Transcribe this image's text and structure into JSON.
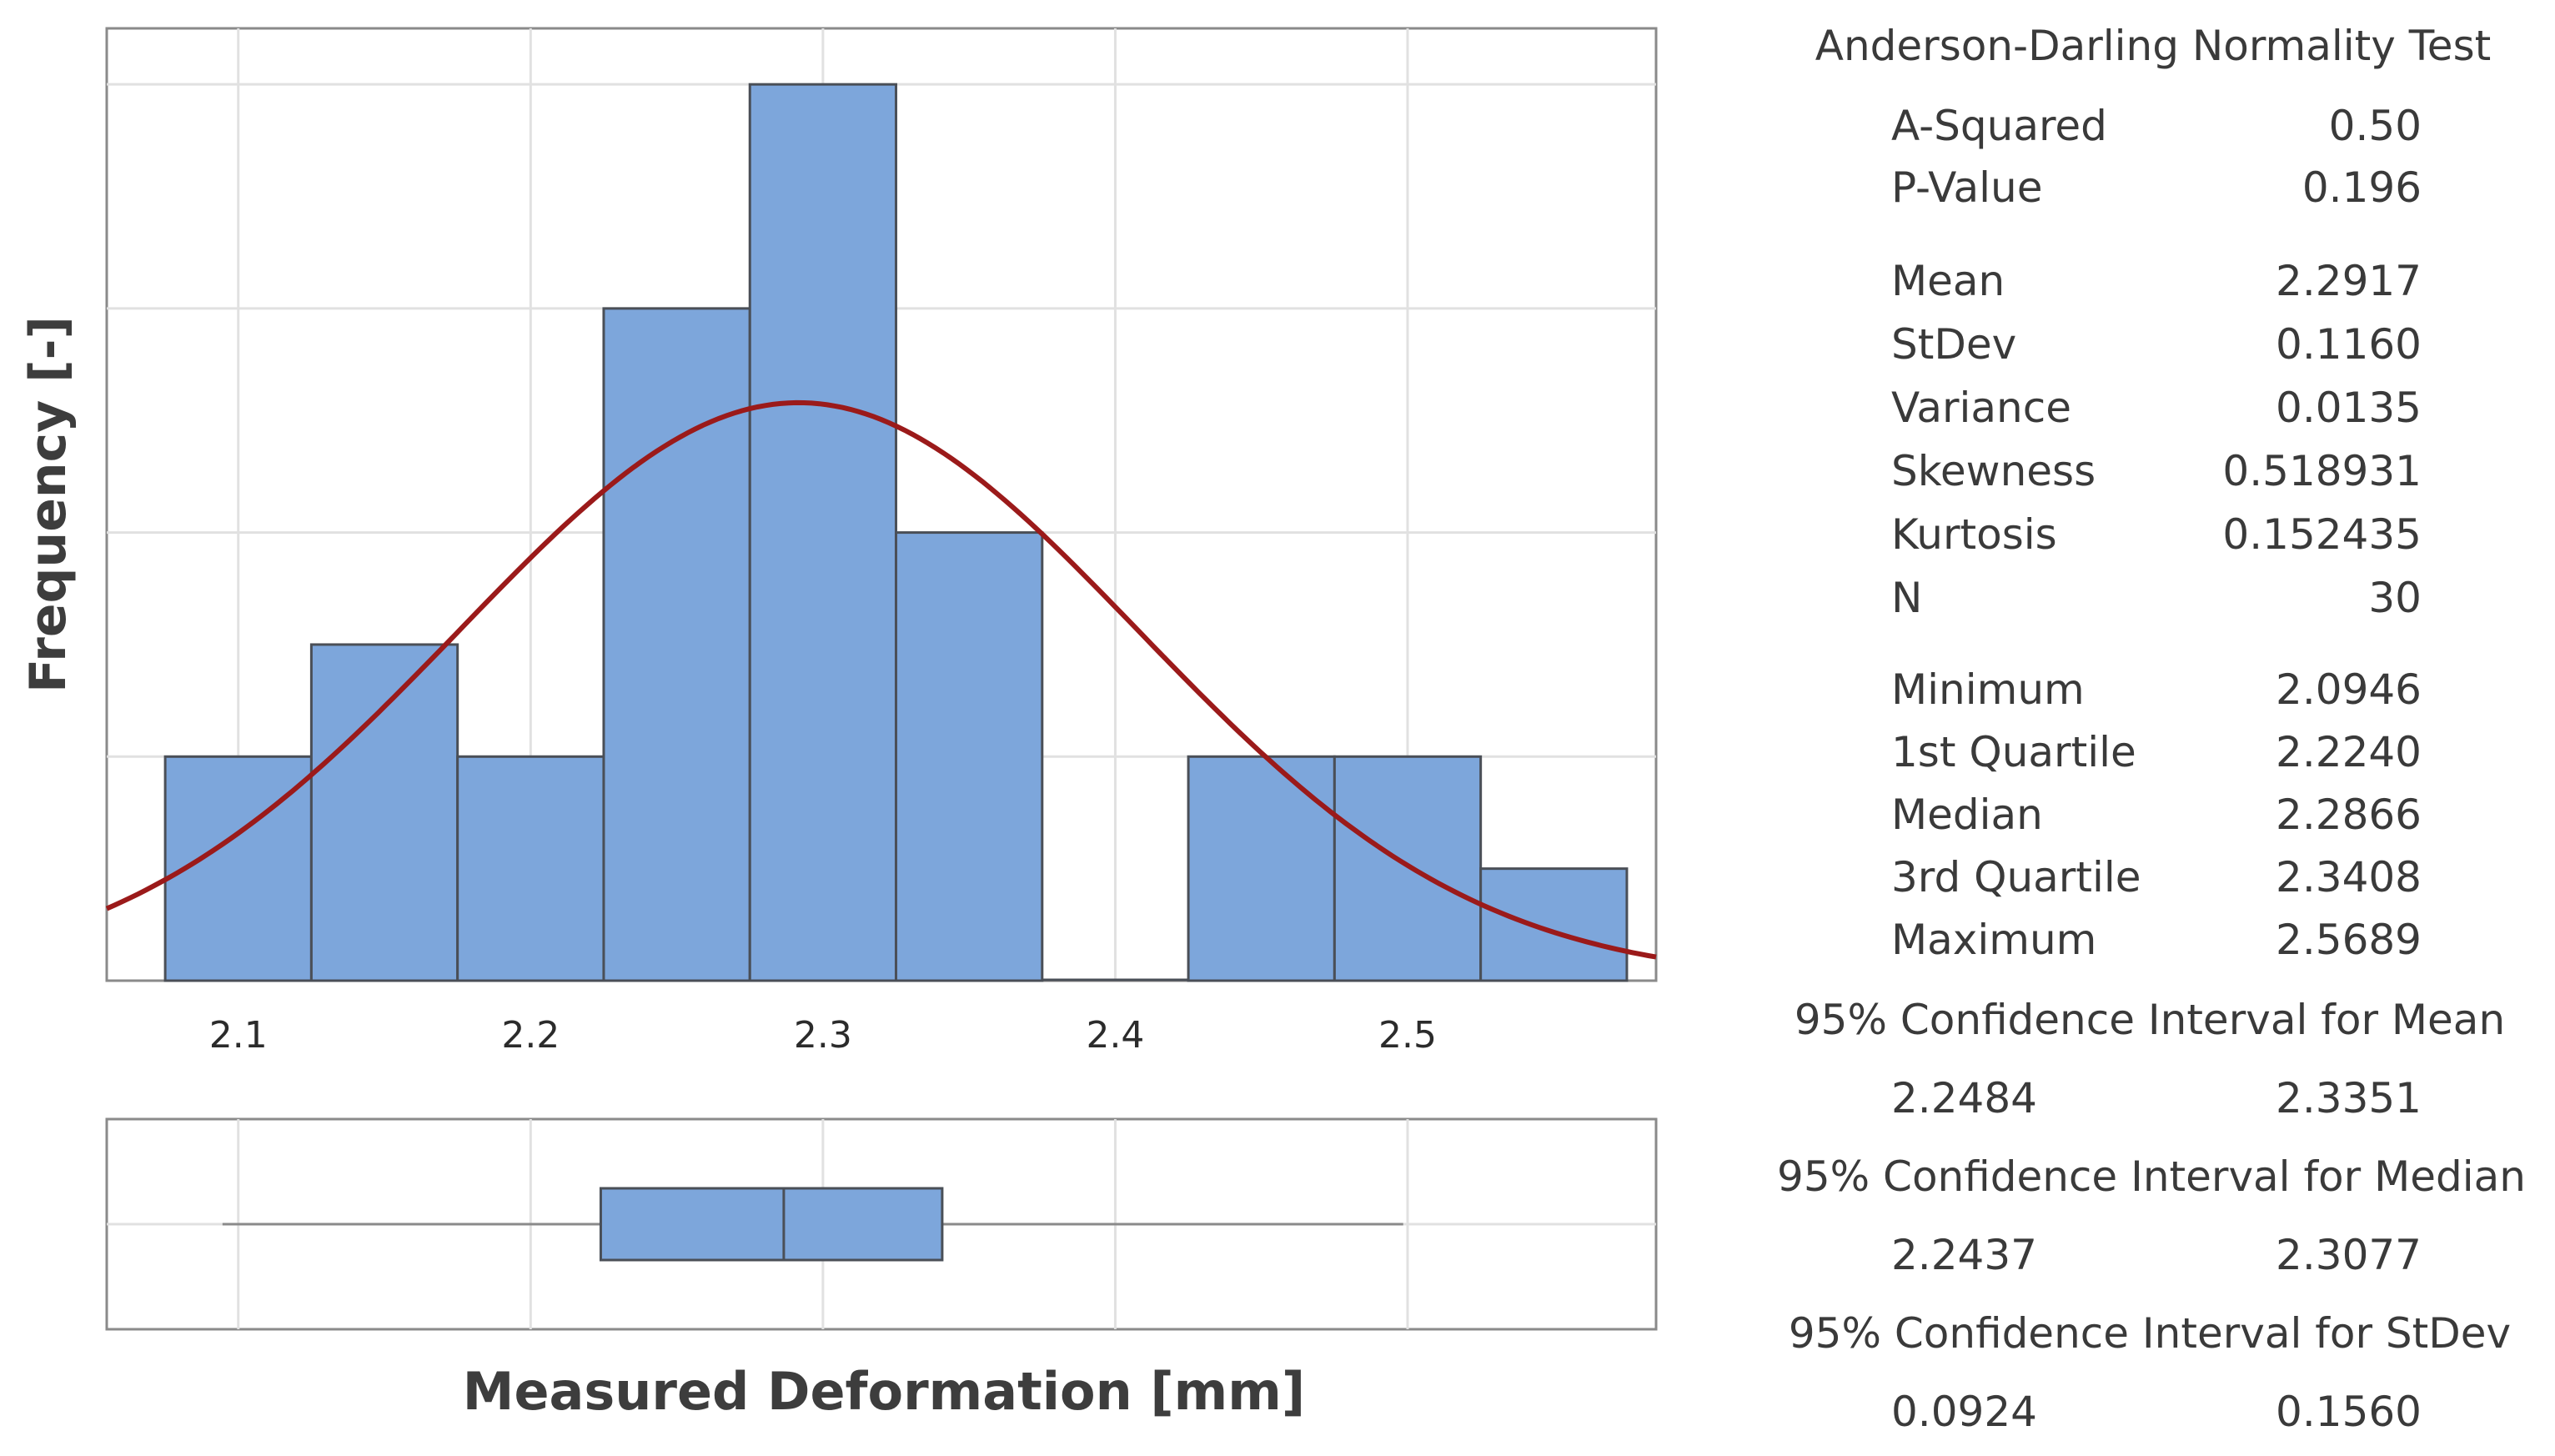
{
  "chart_data": {
    "type": "histogram",
    "xlabel": "Measured Deformation [mm]",
    "ylabel": "Frequency [-]",
    "xlim": [
      2.055,
      2.585
    ],
    "ylim": [
      0,
      8.5
    ],
    "x_ticks": [
      "2.1",
      "2.2",
      "2.3",
      "2.4",
      "2.5"
    ],
    "x_tick_values": [
      2.1,
      2.2,
      2.3,
      2.4,
      2.5
    ],
    "y_gridlines": [
      2,
      4,
      6,
      8
    ],
    "bin_width": 0.05,
    "bins": [
      {
        "x0": 2.075,
        "x1": 2.125,
        "count": 2
      },
      {
        "x0": 2.125,
        "x1": 2.175,
        "count": 3
      },
      {
        "x0": 2.175,
        "x1": 2.225,
        "count": 2
      },
      {
        "x0": 2.225,
        "x1": 2.275,
        "count": 6
      },
      {
        "x0": 2.275,
        "x1": 2.325,
        "count": 8
      },
      {
        "x0": 2.325,
        "x1": 2.375,
        "count": 4
      },
      {
        "x0": 2.375,
        "x1": 2.425,
        "count": 0
      },
      {
        "x0": 2.425,
        "x1": 2.475,
        "count": 2
      },
      {
        "x0": 2.475,
        "x1": 2.525,
        "count": 2
      },
      {
        "x0": 2.525,
        "x1": 2.575,
        "count": 1
      }
    ],
    "normal_fit": {
      "mean": 2.2917,
      "stdev": 0.116,
      "n": 30
    },
    "boxplot": {
      "whisker_low": 2.0946,
      "q1": 2.224,
      "median": 2.2866,
      "q3": 2.3408,
      "whisker_high": 2.4985
    },
    "colors": {
      "bar": "#7da6db",
      "bar_edge": "#4a4f57",
      "fit_line": "#9b1a1a",
      "grid": "#e1e1e1",
      "frame": "#8a8a8a"
    }
  },
  "summary": {
    "title": "Anderson-Darling Normality Test",
    "test": [
      {
        "label": "A-Squared",
        "value": "0.50"
      },
      {
        "label": "P-Value",
        "value": "0.196"
      }
    ],
    "moments": [
      {
        "label": "Mean",
        "value": "2.2917"
      },
      {
        "label": "StDev",
        "value": "0.1160"
      },
      {
        "label": "Variance",
        "value": "0.0135"
      },
      {
        "label": "Skewness",
        "value": "0.518931"
      },
      {
        "label": "Kurtosis",
        "value": "0.152435"
      },
      {
        "label": "N",
        "value": "30"
      }
    ],
    "quantiles": [
      {
        "label": "Minimum",
        "value": "2.0946"
      },
      {
        "label": "1st Quartile",
        "value": "2.2240"
      },
      {
        "label": "Median",
        "value": "2.2866"
      },
      {
        "label": "3rd Quartile",
        "value": "2.3408"
      },
      {
        "label": "Maximum",
        "value": "2.5689"
      }
    ],
    "ci_mean": {
      "title": "95% Confidence Interval for Mean",
      "low": "2.2484",
      "high": "2.3351"
    },
    "ci_median": {
      "title": "95% Confidence Interval for Median",
      "low": "2.2437",
      "high": "2.3077"
    },
    "ci_stdev": {
      "title": "95% Confidence Interval for StDev",
      "low": "0.0924",
      "high": "0.1560"
    }
  }
}
